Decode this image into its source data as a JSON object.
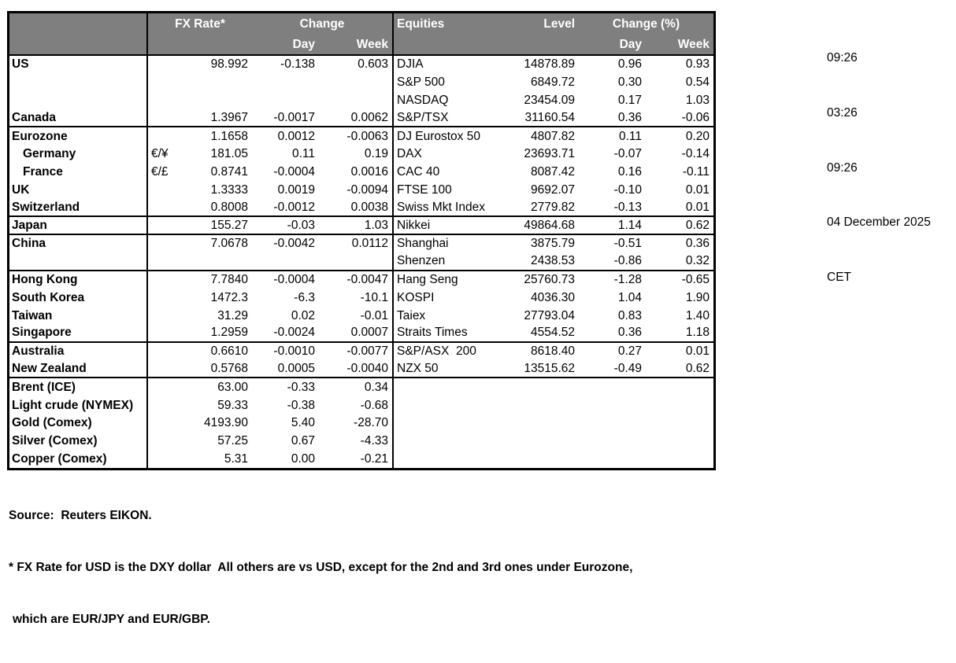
{
  "meta": {
    "header_bg": "#7f7f7f",
    "header_text_color": "#ffffff",
    "border_color": "#000000"
  },
  "table": {
    "header": {
      "fx_rate": "FX Rate*",
      "change": "Change",
      "day": "Day",
      "week": "Week",
      "equities": "Equities",
      "level": "Level",
      "change_pct": "Change (%)"
    },
    "rows": [
      {
        "label": "US",
        "pair": "",
        "fx_rate": "98.992",
        "fx_day": "-0.138",
        "fx_week": "0.603",
        "eq": "DJIA",
        "level": "14878.89",
        "eq_day": "0.96",
        "eq_week": "0.93"
      },
      {
        "label": "",
        "pair": "",
        "fx_rate": "",
        "fx_day": "",
        "fx_week": "",
        "eq": "S&P 500",
        "level": "6849.72",
        "eq_day": "0.30",
        "eq_week": "0.54"
      },
      {
        "label": "",
        "pair": "",
        "fx_rate": "",
        "fx_day": "",
        "fx_week": "",
        "eq": "NASDAQ",
        "level": "23454.09",
        "eq_day": "0.17",
        "eq_week": "1.03"
      },
      {
        "label": "Canada",
        "pair": "",
        "fx_rate": "1.3967",
        "fx_day": "-0.0017",
        "fx_week": "0.0062",
        "eq": "S&P/TSX",
        "level": "31160.54",
        "eq_day": "0.36",
        "eq_week": "-0.06"
      },
      {
        "label": "Eurozone",
        "pair": "",
        "fx_rate": "1.1658",
        "fx_day": "0.0012",
        "fx_week": "-0.0063",
        "eq": "DJ Eurostox 50",
        "level": "4807.82",
        "eq_day": "0.11",
        "eq_week": "0.20"
      },
      {
        "label": "Germany",
        "pair": "€/¥",
        "fx_rate": "181.05",
        "fx_day": "0.11",
        "fx_week": "0.19",
        "eq": "DAX",
        "level": "23693.71",
        "eq_day": "-0.07",
        "eq_week": "-0.14"
      },
      {
        "label": "France",
        "pair": "€/£",
        "fx_rate": "0.8741",
        "fx_day": "-0.0004",
        "fx_week": "0.0016",
        "eq": "CAC 40",
        "level": "8087.42",
        "eq_day": "0.16",
        "eq_week": "-0.11"
      },
      {
        "label": "UK",
        "pair": "",
        "fx_rate": "1.3333",
        "fx_day": "0.0019",
        "fx_week": "-0.0094",
        "eq": "FTSE 100",
        "level": "9692.07",
        "eq_day": "-0.10",
        "eq_week": "0.01"
      },
      {
        "label": "Switzerland",
        "pair": "",
        "fx_rate": "0.8008",
        "fx_day": "-0.0012",
        "fx_week": "0.0038",
        "eq": "Swiss Mkt Index",
        "level": "2779.82",
        "eq_day": "-0.13",
        "eq_week": "0.01"
      },
      {
        "label": "Japan",
        "pair": "",
        "fx_rate": "155.27",
        "fx_day": "-0.03",
        "fx_week": "1.03",
        "eq": "Nikkei",
        "level": "49864.68",
        "eq_day": "1.14",
        "eq_week": "0.62"
      },
      {
        "label": "China",
        "pair": "",
        "fx_rate": "7.0678",
        "fx_day": "-0.0042",
        "fx_week": "0.0112",
        "eq": "Shanghai",
        "level": "3875.79",
        "eq_day": "-0.51",
        "eq_week": "0.36"
      },
      {
        "label": "",
        "pair": "",
        "fx_rate": "",
        "fx_day": "",
        "fx_week": "",
        "eq": "Shenzen",
        "level": "2438.53",
        "eq_day": "-0.86",
        "eq_week": "0.32"
      },
      {
        "label": "Hong Kong",
        "pair": "",
        "fx_rate": "7.7840",
        "fx_day": "-0.0004",
        "fx_week": "-0.0047",
        "eq": "Hang Seng",
        "level": "25760.73",
        "eq_day": "-1.28",
        "eq_week": "-0.65"
      },
      {
        "label": "South Korea",
        "pair": "",
        "fx_rate": "1472.3",
        "fx_day": "-6.3",
        "fx_week": "-10.1",
        "eq": "KOSPI",
        "level": "4036.30",
        "eq_day": "1.04",
        "eq_week": "1.90"
      },
      {
        "label": "Taiwan",
        "pair": "",
        "fx_rate": "31.29",
        "fx_day": "0.02",
        "fx_week": "-0.01",
        "eq": "Taiex",
        "level": "27793.04",
        "eq_day": "0.83",
        "eq_week": "1.40"
      },
      {
        "label": "Singapore",
        "pair": "",
        "fx_rate": "1.2959",
        "fx_day": "-0.0024",
        "fx_week": "0.0007",
        "eq": "Straits Times",
        "level": "4554.52",
        "eq_day": "0.36",
        "eq_week": "1.18"
      },
      {
        "label": "Australia",
        "pair": "",
        "fx_rate": "0.6610",
        "fx_day": "-0.0010",
        "fx_week": "-0.0077",
        "eq": "S&P/ASX  200",
        "level": "8618.40",
        "eq_day": "0.27",
        "eq_week": "0.01"
      },
      {
        "label": "New Zealand",
        "pair": "",
        "fx_rate": "0.5768",
        "fx_day": "0.0005",
        "fx_week": "-0.0040",
        "eq": "NZX 50",
        "level": "13515.62",
        "eq_day": "-0.49",
        "eq_week": "0.62"
      },
      {
        "label": "Brent (ICE)",
        "pair": "",
        "fx_rate": "63.00",
        "fx_day": "-0.33",
        "fx_week": "0.34",
        "eq": "",
        "level": "",
        "eq_day": "",
        "eq_week": ""
      },
      {
        "label": "Light crude (NYMEX)",
        "pair": "",
        "fx_rate": "59.33",
        "fx_day": "-0.38",
        "fx_week": "-0.68",
        "eq": "",
        "level": "",
        "eq_day": "",
        "eq_week": ""
      },
      {
        "label": "Gold (Comex)",
        "pair": "",
        "fx_rate": "4193.90",
        "fx_day": "5.40",
        "fx_week": "-28.70",
        "eq": "",
        "level": "",
        "eq_day": "",
        "eq_week": ""
      },
      {
        "label": "Silver (Comex)",
        "pair": "",
        "fx_rate": "57.25",
        "fx_day": "0.67",
        "fx_week": "-4.33",
        "eq": "",
        "level": "",
        "eq_day": "",
        "eq_week": ""
      },
      {
        "label": "Copper (Comex)",
        "pair": "",
        "fx_rate": "5.31",
        "fx_day": "0.00",
        "fx_week": "-0.21",
        "eq": "",
        "level": "",
        "eq_day": "",
        "eq_week": ""
      }
    ]
  },
  "side": {
    "time1": "09:26",
    "time2": "03:26",
    "time3": "09:26",
    "date": "04 December 2025",
    "timezone": "CET"
  },
  "footer": {
    "source": "Source:  Reuters EIKON.",
    "note_line1": "* FX Rate for USD is the DXY dollar  All others are vs USD, except for the 2nd and 3rd ones under Eurozone,",
    "note_line2": "which are EUR/JPY and EUR/GBP."
  }
}
